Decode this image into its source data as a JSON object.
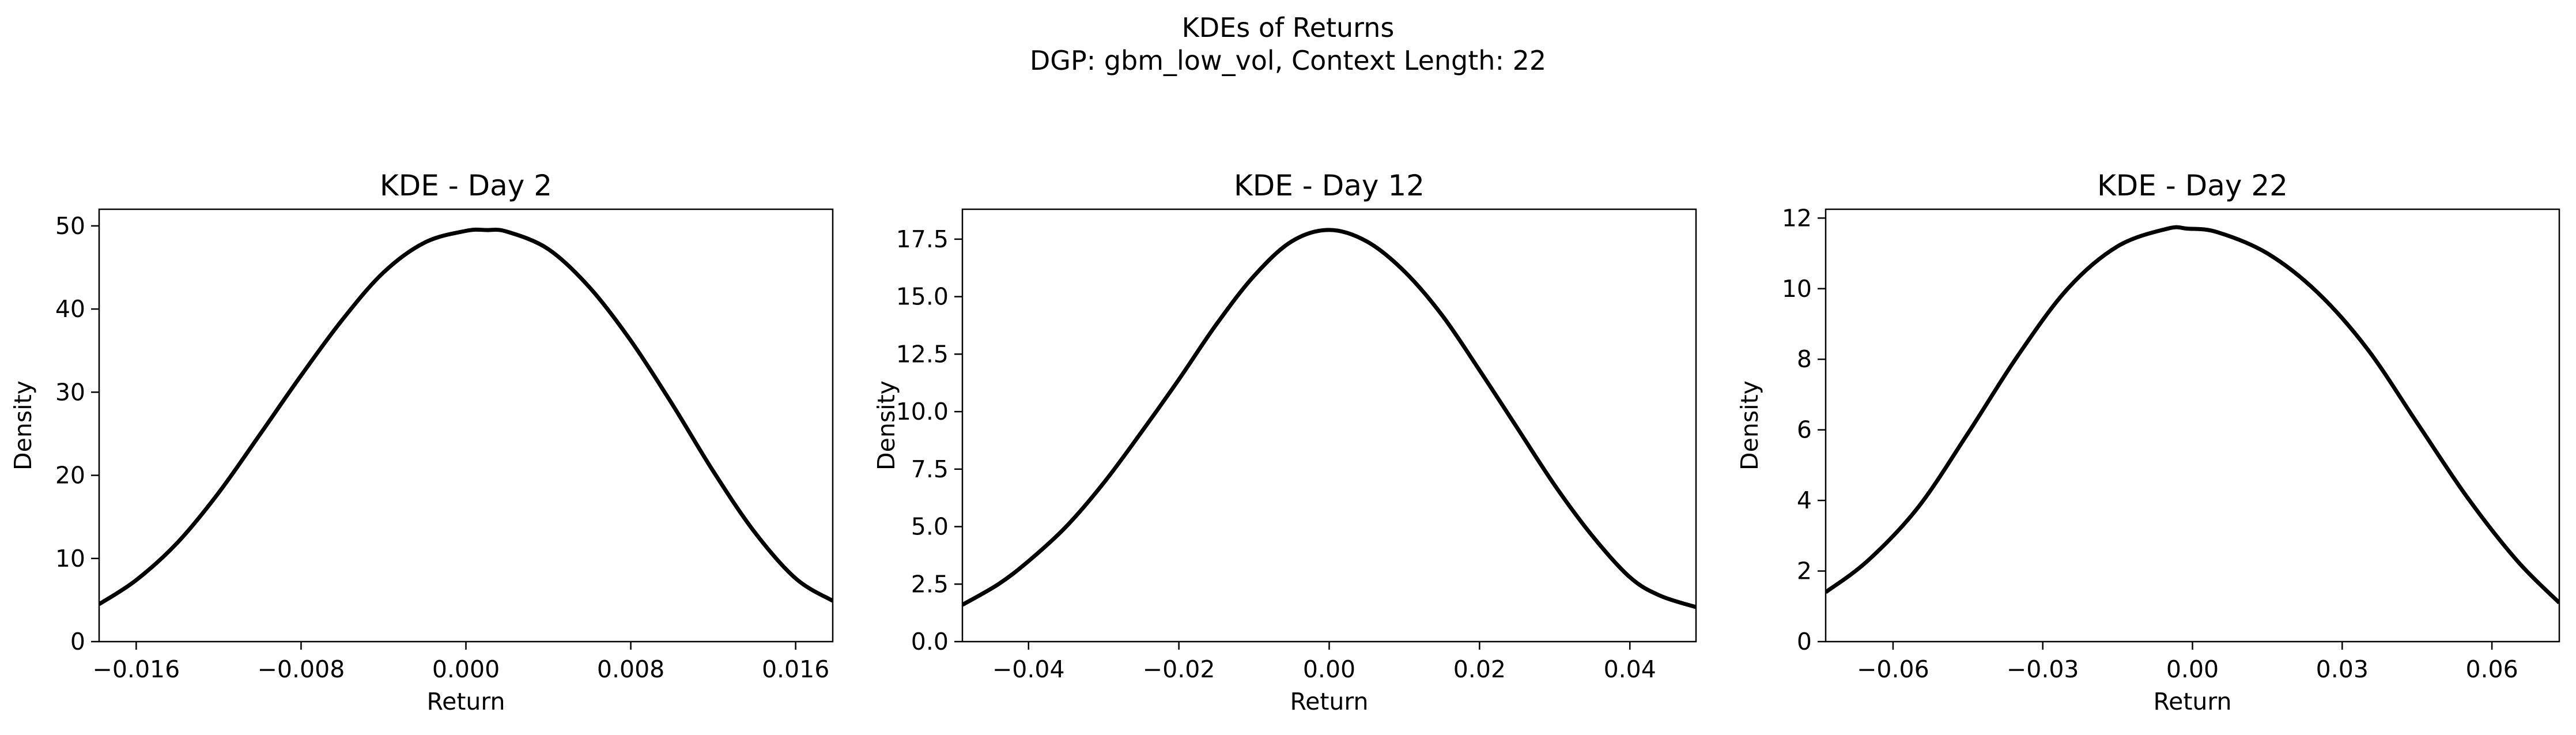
{
  "figure": {
    "title_line1": "KDEs of Returns",
    "title_line2": "DGP: gbm_low_vol, Context Length: 22"
  },
  "style": {
    "line_color": "#000000",
    "background": "#ffffff"
  },
  "chart_data": [
    {
      "type": "line",
      "title": "KDE - Day 2",
      "xlabel": "Return",
      "ylabel": "Density",
      "grid": false,
      "xlim": [
        -0.0178,
        0.0178
      ],
      "ylim": [
        0,
        52
      ],
      "xticks": [
        -0.016,
        -0.008,
        0.0,
        0.008,
        0.016
      ],
      "xtick_labels": [
        "−0.016",
        "−0.008",
        "0.000",
        "0.008",
        "0.016"
      ],
      "yticks": [
        0,
        10,
        20,
        30,
        40,
        50
      ],
      "ytick_labels": [
        "0",
        "10",
        "20",
        "30",
        "40",
        "50"
      ],
      "series": [
        {
          "x": [
            -0.0178,
            -0.016,
            -0.014,
            -0.012,
            -0.01,
            -0.008,
            -0.006,
            -0.004,
            -0.002,
            0.0,
            0.001,
            0.002,
            0.004,
            0.006,
            0.008,
            0.01,
            0.012,
            0.014,
            0.016,
            0.0178
          ],
          "y": [
            4.5,
            7.4,
            11.9,
            17.9,
            24.9,
            32.0,
            38.7,
            44.4,
            48.0,
            49.4,
            49.5,
            49.3,
            47.2,
            42.6,
            36.2,
            28.6,
            20.5,
            13.2,
            7.6,
            4.9
          ]
        }
      ]
    },
    {
      "type": "line",
      "title": "KDE - Day 12",
      "xlabel": "Return",
      "ylabel": "Density",
      "grid": false,
      "xlim": [
        -0.0488,
        0.0488
      ],
      "ylim": [
        0,
        18.8
      ],
      "xticks": [
        -0.04,
        -0.02,
        0.0,
        0.02,
        0.04
      ],
      "xtick_labels": [
        "−0.04",
        "−0.02",
        "0.00",
        "0.02",
        "0.04"
      ],
      "yticks": [
        0.0,
        2.5,
        5.0,
        7.5,
        10.0,
        12.5,
        15.0,
        17.5
      ],
      "ytick_labels": [
        "0.0",
        "2.5",
        "5.0",
        "7.5",
        "10.0",
        "12.5",
        "15.0",
        "17.5"
      ],
      "series": [
        {
          "x": [
            -0.0488,
            -0.044,
            -0.04,
            -0.035,
            -0.03,
            -0.025,
            -0.02,
            -0.015,
            -0.01,
            -0.005,
            0.0,
            0.005,
            0.01,
            0.015,
            0.02,
            0.025,
            0.03,
            0.035,
            0.04,
            0.044,
            0.0488
          ],
          "y": [
            1.6,
            2.5,
            3.5,
            5.0,
            6.9,
            9.1,
            11.4,
            13.8,
            15.9,
            17.4,
            17.9,
            17.4,
            16.1,
            14.2,
            11.8,
            9.3,
            6.8,
            4.6,
            2.8,
            2.0,
            1.5
          ]
        }
      ]
    },
    {
      "type": "line",
      "title": "KDE - Day 22",
      "xlabel": "Return",
      "ylabel": "Density",
      "grid": false,
      "xlim": [
        -0.0735,
        0.0735
      ],
      "ylim": [
        0,
        12.25
      ],
      "xticks": [
        -0.06,
        -0.03,
        0.0,
        0.03,
        0.06
      ],
      "xtick_labels": [
        "−0.06",
        "−0.03",
        "0.00",
        "0.03",
        "0.06"
      ],
      "yticks": [
        0,
        2,
        4,
        6,
        8,
        10,
        12
      ],
      "ytick_labels": [
        "0",
        "2",
        "4",
        "6",
        "8",
        "10",
        "12"
      ],
      "series": [
        {
          "x": [
            -0.0735,
            -0.065,
            -0.055,
            -0.045,
            -0.035,
            -0.025,
            -0.015,
            -0.005,
            -0.001,
            0.005,
            0.015,
            0.025,
            0.035,
            0.045,
            0.055,
            0.065,
            0.0735
          ],
          "y": [
            1.4,
            2.3,
            3.8,
            5.9,
            8.1,
            10.0,
            11.2,
            11.7,
            11.7,
            11.6,
            11.0,
            9.9,
            8.3,
            6.2,
            4.1,
            2.3,
            1.1
          ]
        }
      ]
    }
  ]
}
